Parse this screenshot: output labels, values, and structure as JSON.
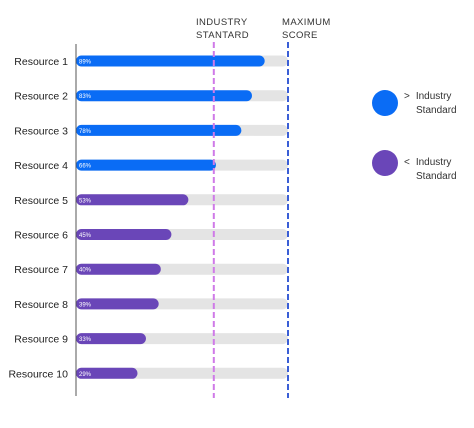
{
  "colors": {
    "above": "#0a6cf5",
    "below": "#6a46b8",
    "track": "#e4e4e4",
    "industry_line": "#cf7ae8",
    "max_line": "#3a5ed6",
    "axis": "#555555"
  },
  "headers": {
    "industry": [
      "INDUSTRY",
      "STANTARD"
    ],
    "maximum": [
      "MAXIMUM",
      "SCORE"
    ]
  },
  "legend": [
    {
      "symbol": ">",
      "line1": "Industry",
      "line2": "Standard",
      "color": "#0a6cf5"
    },
    {
      "symbol": "<",
      "line1": "Industry",
      "line2": "Standard",
      "color": "#6a46b8"
    }
  ],
  "chart_data": {
    "type": "bar",
    "orientation": "horizontal",
    "categories": [
      "Resource 1",
      "Resource 2",
      "Resource 3",
      "Resource 4",
      "Resource 5",
      "Resource 6",
      "Resource 7",
      "Resource 8",
      "Resource 9",
      "Resource 10"
    ],
    "values": [
      89,
      83,
      78,
      66,
      53,
      45,
      40,
      39,
      33,
      29
    ],
    "labels": [
      "89%",
      "83%",
      "78%",
      "66%",
      "53%",
      "45%",
      "40%",
      "39%",
      "33%",
      "29%"
    ],
    "industry_standard": 65,
    "maximum_score": 100,
    "xlim": [
      0,
      100
    ]
  }
}
